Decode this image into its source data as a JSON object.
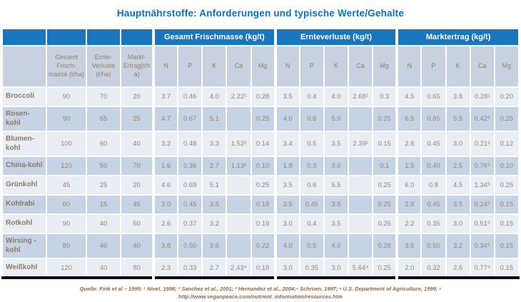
{
  "title": "Hauptnährstoffe: Anforderungen und typische Werte/Gehalte",
  "colors": {
    "title_text": "#0b72c6",
    "header_bg": "#1b75bc",
    "header_text": "#ffffff",
    "subheader_bg": "#c7d1df",
    "row_light": "#e9eef5",
    "row_dark": "#c6d3e5",
    "cell_text": "#97876f",
    "footer_text": "#8a6a4f",
    "table_bottom_border": "#000000"
  },
  "table": {
    "group_headers": [
      {
        "label": "Gesamt Frischmasse (kg/t)",
        "span": 5
      },
      {
        "label": "Ernteverluste (kg/t)",
        "span": 5
      },
      {
        "label": "Marktertrag (kg/t)",
        "span": 5
      }
    ],
    "sub_headers": [
      "",
      "Gesamt Frisch-masse (t/ha)",
      "Ernte-Verluste (t/ha)",
      "Markt-Ertrag(t/ha)",
      "N",
      "P",
      "K",
      "Ca",
      "Mg",
      "N",
      "P",
      "K",
      "Ca",
      "Mg",
      "N",
      "P",
      "K",
      "Ca",
      "Mg"
    ],
    "rows": [
      [
        "Broccoli",
        "90",
        "70",
        "20",
        "3.7",
        "0.46",
        "4.0",
        "2.22¹",
        "0.28",
        "3.5",
        "0.4",
        "4.0",
        "2.68¹",
        "0.3",
        "4.5",
        "0.65",
        "3.8",
        "0.28¹",
        "0.20"
      ],
      [
        "Rosen-kohl",
        "90",
        "65",
        "25",
        "4.7",
        "0.67",
        "5.1",
        "",
        "0.25",
        "4.0",
        "0.6",
        "5.0",
        "",
        "0.25",
        "6.5",
        "0.85",
        "5.5",
        "0.42⁶",
        "0.25"
      ],
      [
        "Blumen-kohl",
        "100",
        "60",
        "40",
        "3.2",
        "0.48",
        "3.3",
        "1.52²",
        "0.14",
        "3.4",
        "0.5",
        "3.5",
        "2.39²",
        "0.15",
        "2.8",
        "0.45",
        "3.0",
        "0.21²",
        "0.12"
      ],
      [
        "China-kohl",
        "120",
        "50",
        "70",
        "1.6",
        "0.36",
        "2.7",
        "1.13³",
        "0.10",
        "1.8",
        "0.3",
        "3.0",
        "",
        "0.1",
        "1.5",
        "0.40",
        "2.5",
        "0.76⁵",
        "0.10"
      ],
      [
        "Grünkohl",
        "45",
        "25",
        "20",
        "4.6",
        "0.69",
        "5.1",
        "",
        "0.25",
        "3.5",
        "0.6",
        "5.5",
        "",
        "0.25",
        "6.0",
        "0.8",
        "4.5",
        "1.34⁵",
        "0.25"
      ],
      [
        "Kohlrabi",
        "60",
        "15",
        "45",
        "3.0",
        "0.45",
        "3.5",
        "",
        "0.18",
        "3.5",
        "0.45",
        "3.5",
        "",
        "0.25",
        "2.8",
        "0.45",
        "3.5",
        "0.24⁵",
        "0.15"
      ],
      [
        "Rotkohl",
        "90",
        "40",
        "50",
        "2.6",
        "0.37",
        "3.2",
        "",
        "0.19",
        "3.0",
        "0.4",
        "3.5",
        "",
        "0.25",
        "2.2",
        "0.35",
        "3.0",
        "0.51⁵",
        "0.15"
      ],
      [
        "Wirsing - kohl",
        "80",
        "40",
        "40",
        "3.8",
        "0.50",
        "3.6",
        "",
        "0.22",
        "4.0",
        "0.5",
        "4.0",
        "",
        "0.28",
        "3.5",
        "0.50",
        "3.2",
        "0.34⁵",
        "0.15"
      ],
      [
        "Weißkohl",
        "120",
        "40",
        "80",
        "2.3",
        "0.33",
        "2.7",
        "2.43⁴",
        "0.18",
        "3.0",
        "0.35",
        "3.0",
        "5.64⁴",
        "0.25",
        "2.0",
        "0.32",
        "2.6",
        "0.77⁴",
        "0.15"
      ]
    ]
  },
  "footer": {
    "text": "Quelle: Fink et al – 1999; ¹ Nivet, 1998; ² Sanchez et al., 2001; ³ Hernandez et al., 2004;⁴ Schroen, 1997; ⁵ U.S. Department of Agriculture, 1999; ⁶ http://www.veganpeace.com/nutrient_information/resources.htm"
  }
}
